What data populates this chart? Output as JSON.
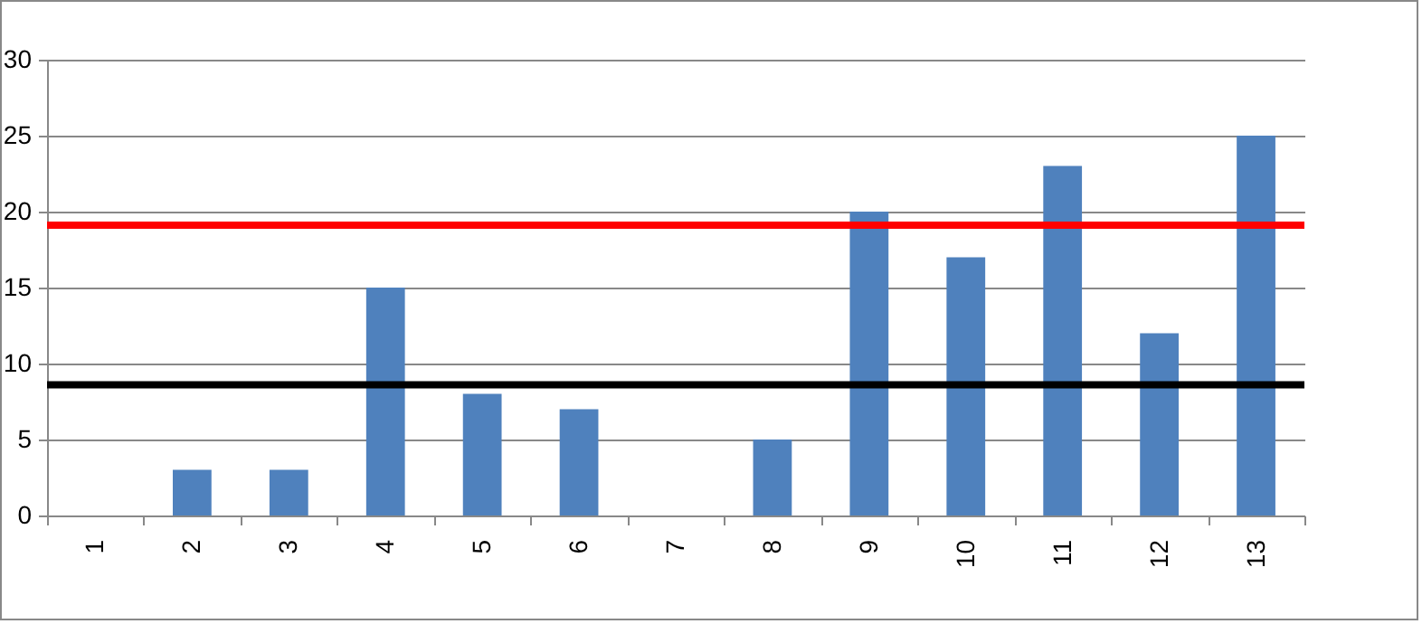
{
  "chart_data": {
    "type": "bar",
    "categories": [
      "1",
      "2",
      "3",
      "4",
      "5",
      "6",
      "7",
      "8",
      "9",
      "10",
      "11",
      "12",
      "13"
    ],
    "values": [
      0,
      3,
      3,
      15,
      8,
      7,
      0,
      5,
      20,
      17,
      23,
      12,
      25
    ],
    "color": "#4f81bd",
    "ylim": [
      0,
      30
    ],
    "yticks": [
      0,
      5,
      10,
      15,
      20,
      25,
      30
    ],
    "grid": "y",
    "ref_lines": [
      {
        "axis": "y",
        "value": 19.1,
        "color": "#ff0000"
      },
      {
        "axis": "y",
        "value": 8.6,
        "color": "#000000"
      }
    ]
  }
}
